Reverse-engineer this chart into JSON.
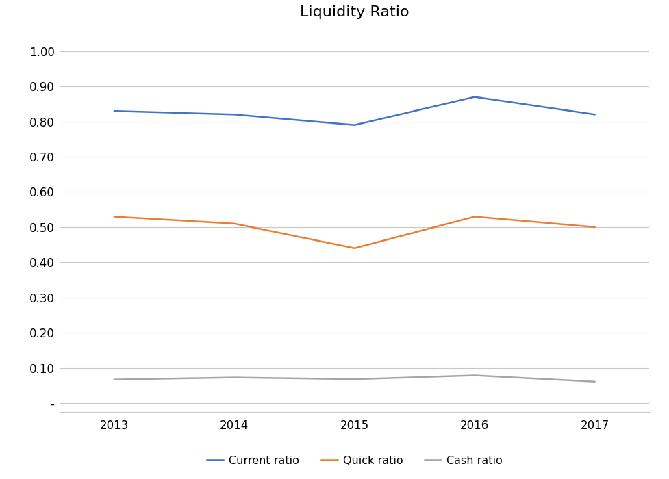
{
  "title": "Liquidity Ratio",
  "years": [
    2013,
    2014,
    2015,
    2016,
    2017
  ],
  "current_ratio": [
    0.83,
    0.82,
    0.79,
    0.87,
    0.82
  ],
  "quick_ratio": [
    0.53,
    0.51,
    0.44,
    0.53,
    0.5
  ],
  "cash_ratio": [
    0.067,
    0.073,
    0.068,
    0.079,
    0.061
  ],
  "current_color": "#4472C4",
  "quick_color": "#ED7D31",
  "cash_color": "#A5A5A5",
  "line_width": 1.8,
  "ylim_min": -0.025,
  "ylim_max": 1.05,
  "yticks": [
    0.0,
    0.1,
    0.2,
    0.3,
    0.4,
    0.5,
    0.6,
    0.7,
    0.8,
    0.9,
    1.0
  ],
  "ytick_labels": [
    "-",
    "0.10",
    "0.20",
    "0.30",
    "0.40",
    "0.50",
    "0.60",
    "0.70",
    "0.80",
    "0.90",
    "1.00"
  ],
  "legend_labels": [
    "Current ratio",
    "Quick ratio",
    "Cash ratio"
  ],
  "background_color": "#FFFFFF",
  "grid_color": "#C8C8C8",
  "title_fontsize": 16,
  "tick_fontsize": 12,
  "xlim_left": 2012.55,
  "xlim_right": 2017.45
}
